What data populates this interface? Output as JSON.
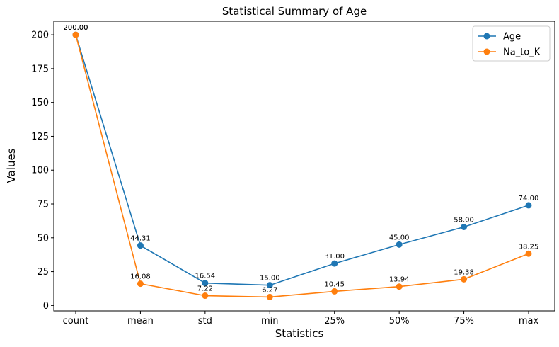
{
  "chart_data": {
    "type": "line",
    "title": "Statistical Summary of Age",
    "xlabel": "Statistics",
    "ylabel": "Values",
    "categories": [
      "count",
      "mean",
      "std",
      "min",
      "25%",
      "50%",
      "75%",
      "max"
    ],
    "series": [
      {
        "name": "Age",
        "color": "#1f77b4",
        "values": [
          200.0,
          44.31,
          16.54,
          15.0,
          31.0,
          45.0,
          58.0,
          74.0
        ],
        "labels": [
          "200.00",
          "44.31",
          "16.54",
          "15.00",
          "31.00",
          "45.00",
          "58.00",
          "74.00"
        ]
      },
      {
        "name": "Na_to_K",
        "color": "#ff7f0e",
        "values": [
          200.0,
          16.08,
          7.22,
          6.27,
          10.45,
          13.94,
          19.38,
          38.25
        ],
        "labels": [
          "200.00",
          "16.08",
          "7.22",
          "6.27",
          "10.45",
          "13.94",
          "19.38",
          "38.25"
        ]
      }
    ],
    "ylim": [
      -4,
      210
    ],
    "yticks": [
      0,
      25,
      50,
      75,
      100,
      125,
      150,
      175,
      200
    ],
    "grid": false,
    "legend_position": "top-right"
  }
}
